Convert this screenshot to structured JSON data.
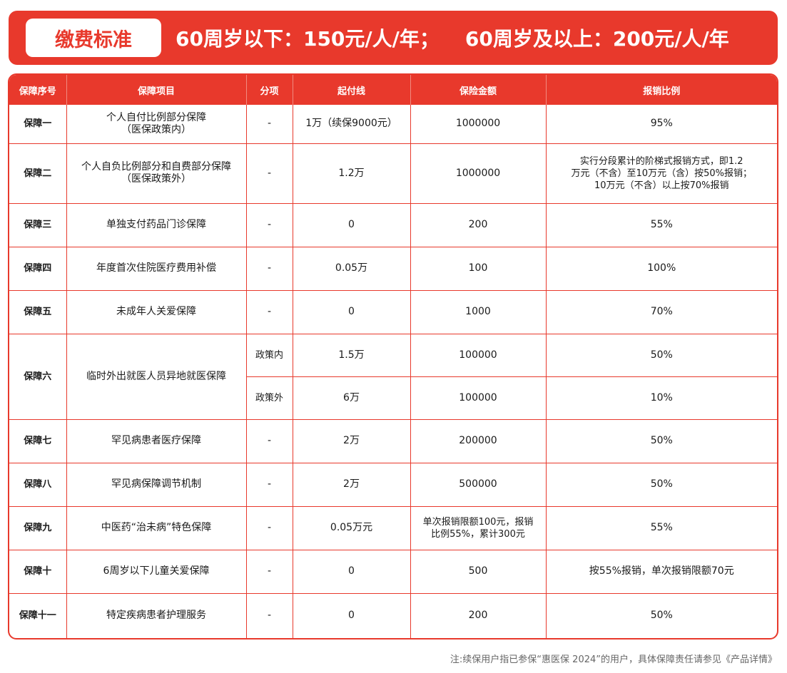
{
  "banner": {
    "tag": "缴费标准",
    "price_under60": "60周岁以下：150元/人/年；",
    "price_over60": "60周岁及以上：200元/人/年"
  },
  "table": {
    "headers": [
      "保障序号",
      "保障项目",
      "分项",
      "起付线",
      "保险金额",
      "报销比例"
    ],
    "rows": [
      {
        "no": "保障一",
        "item": "个人自付比例部分保障\n（医保政策内）",
        "sub": "-",
        "deductible": "1万（续保9000元）",
        "amount": "1000000",
        "ratio": "95%"
      },
      {
        "no": "保障二",
        "item": "个人自负比例部分和自费部分保障\n（医保政策外）",
        "sub": "-",
        "deductible": "1.2万",
        "amount": "1000000",
        "ratio": "实行分段累计的阶梯式报销方式，即1.2\n万元（不含）至10万元（含）按50%报销；\n10万元（不含）以上按70%报销"
      },
      {
        "no": "保障三",
        "item": "单独支付药品门诊保障",
        "sub": "-",
        "deductible": "0",
        "amount": "200",
        "ratio": "55%"
      },
      {
        "no": "保障四",
        "item": "年度首次住院医疗费用补偿",
        "sub": "-",
        "deductible": "0.05万",
        "amount": "100",
        "ratio": "100%"
      },
      {
        "no": "保障五",
        "item": "未成年人关爱保障",
        "sub": "-",
        "deductible": "0",
        "amount": "1000",
        "ratio": "70%"
      },
      {
        "no": "保障六",
        "item": "临时外出就医人员异地就医保障",
        "sub": "政策内",
        "deductible": "1.5万",
        "amount": "100000",
        "ratio": "50%"
      },
      {
        "sub": "政策外",
        "deductible": "6万",
        "amount": "100000",
        "ratio": "10%"
      },
      {
        "no": "保障七",
        "item": "罕见病患者医疗保障",
        "sub": "-",
        "deductible": "2万",
        "amount": "200000",
        "ratio": "50%"
      },
      {
        "no": "保障八",
        "item": "罕见病保障调节机制",
        "sub": "-",
        "deductible": "2万",
        "amount": "500000",
        "ratio": "50%"
      },
      {
        "no": "保障九",
        "item": "中医药“治未病”特色保障",
        "sub": "-",
        "deductible": "0.05万元",
        "amount": "单次报销限额100元，报销\n比例55%，累计300元",
        "ratio": "55%"
      },
      {
        "no": "保障十",
        "item": "6周岁以下儿童关爱保障",
        "sub": "-",
        "deductible": "0",
        "amount": "500",
        "ratio": "按55%报销，单次报销限额70元"
      },
      {
        "no": "保障十一",
        "item": "特定疾病患者护理服务",
        "sub": "-",
        "deductible": "0",
        "amount": "200",
        "ratio": "50%"
      }
    ]
  },
  "footnote": "注:续保用户指已参保“惠医保 2024”的用户，具体保障责任请参见《产品详情》",
  "colors": {
    "accent": "#e8392c"
  }
}
